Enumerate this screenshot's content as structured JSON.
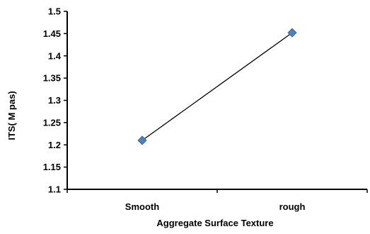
{
  "chart_data": {
    "type": "line",
    "title": "",
    "xlabel": "Aggregate Surface Texture",
    "ylabel": "ITS( M pas)",
    "categories": [
      "Smooth",
      "rough"
    ],
    "series": [
      {
        "values": [
          1.21,
          1.452
        ]
      }
    ],
    "ylim": [
      1.1,
      1.5
    ],
    "ytick_labels": [
      "1.1",
      "1.15",
      "1.2",
      "1.25",
      "1.3",
      "1.35",
      "1.4",
      "1.45",
      "1.5"
    ],
    "grid": false,
    "legend": "none",
    "colors": {
      "line": "#000000",
      "marker": "#4f81bd",
      "marker_edge": "#2f5597",
      "axis": "#000000"
    },
    "marker": "diamond"
  }
}
